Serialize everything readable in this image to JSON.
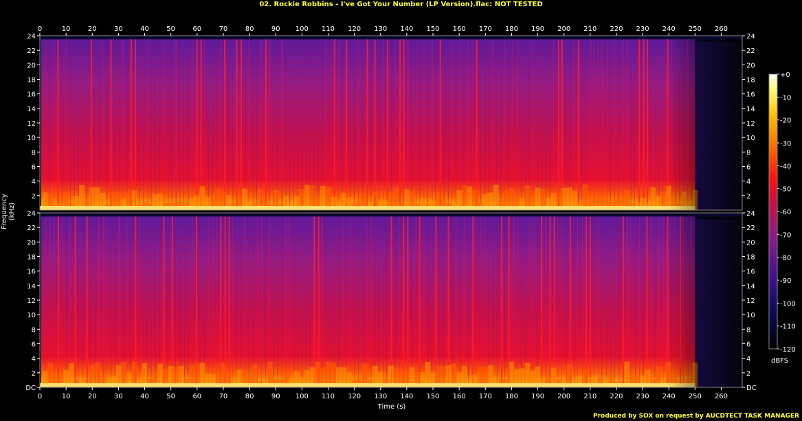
{
  "header": {
    "title": "02. Rockie Robbins - I've Got Your Number (LP Version).flac: NOT TESTED",
    "title_color": "#ffff33"
  },
  "footer": {
    "text": "Produced by SOX on request by AUCDTECT TASK MANAGER",
    "color": "#ffff33"
  },
  "chart_data": {
    "type": "heatmap",
    "title": "02. Rockie Robbins - I've Got Your Number (LP Version).flac: NOT TESTED",
    "xlabel": "Time (s)",
    "ylabel": "Frequency (kHz)",
    "xlim": [
      0,
      268
    ],
    "ylim": [
      0,
      24
    ],
    "x_ticks": [
      "0",
      "10",
      "20",
      "30",
      "40",
      "50",
      "60",
      "70",
      "80",
      "90",
      "100",
      "110",
      "120",
      "130",
      "140",
      "150",
      "160",
      "170",
      "180",
      "190",
      "200",
      "210",
      "220",
      "230",
      "240",
      "250",
      "260"
    ],
    "y_ticks_upper": [
      "2",
      "4",
      "6",
      "8",
      "10",
      "12",
      "14",
      "16",
      "18",
      "20",
      "22",
      "24"
    ],
    "y_ticks_lower": [
      "DC",
      "2",
      "4",
      "6",
      "8",
      "10",
      "12",
      "14",
      "16",
      "18",
      "20",
      "22",
      "24"
    ],
    "channels": [
      "Channel 1",
      "Channel 2"
    ],
    "colorbar": {
      "label": "dBFS",
      "range": [
        -120,
        0
      ],
      "ticks": [
        "+0",
        "-10",
        "-20",
        "-30",
        "-40",
        "-50",
        "-60",
        "-70",
        "-80",
        "-90",
        "-100",
        "-110",
        "-120"
      ]
    },
    "signal_cutoff_khz": 23.5,
    "audio_end_s": 250
  }
}
